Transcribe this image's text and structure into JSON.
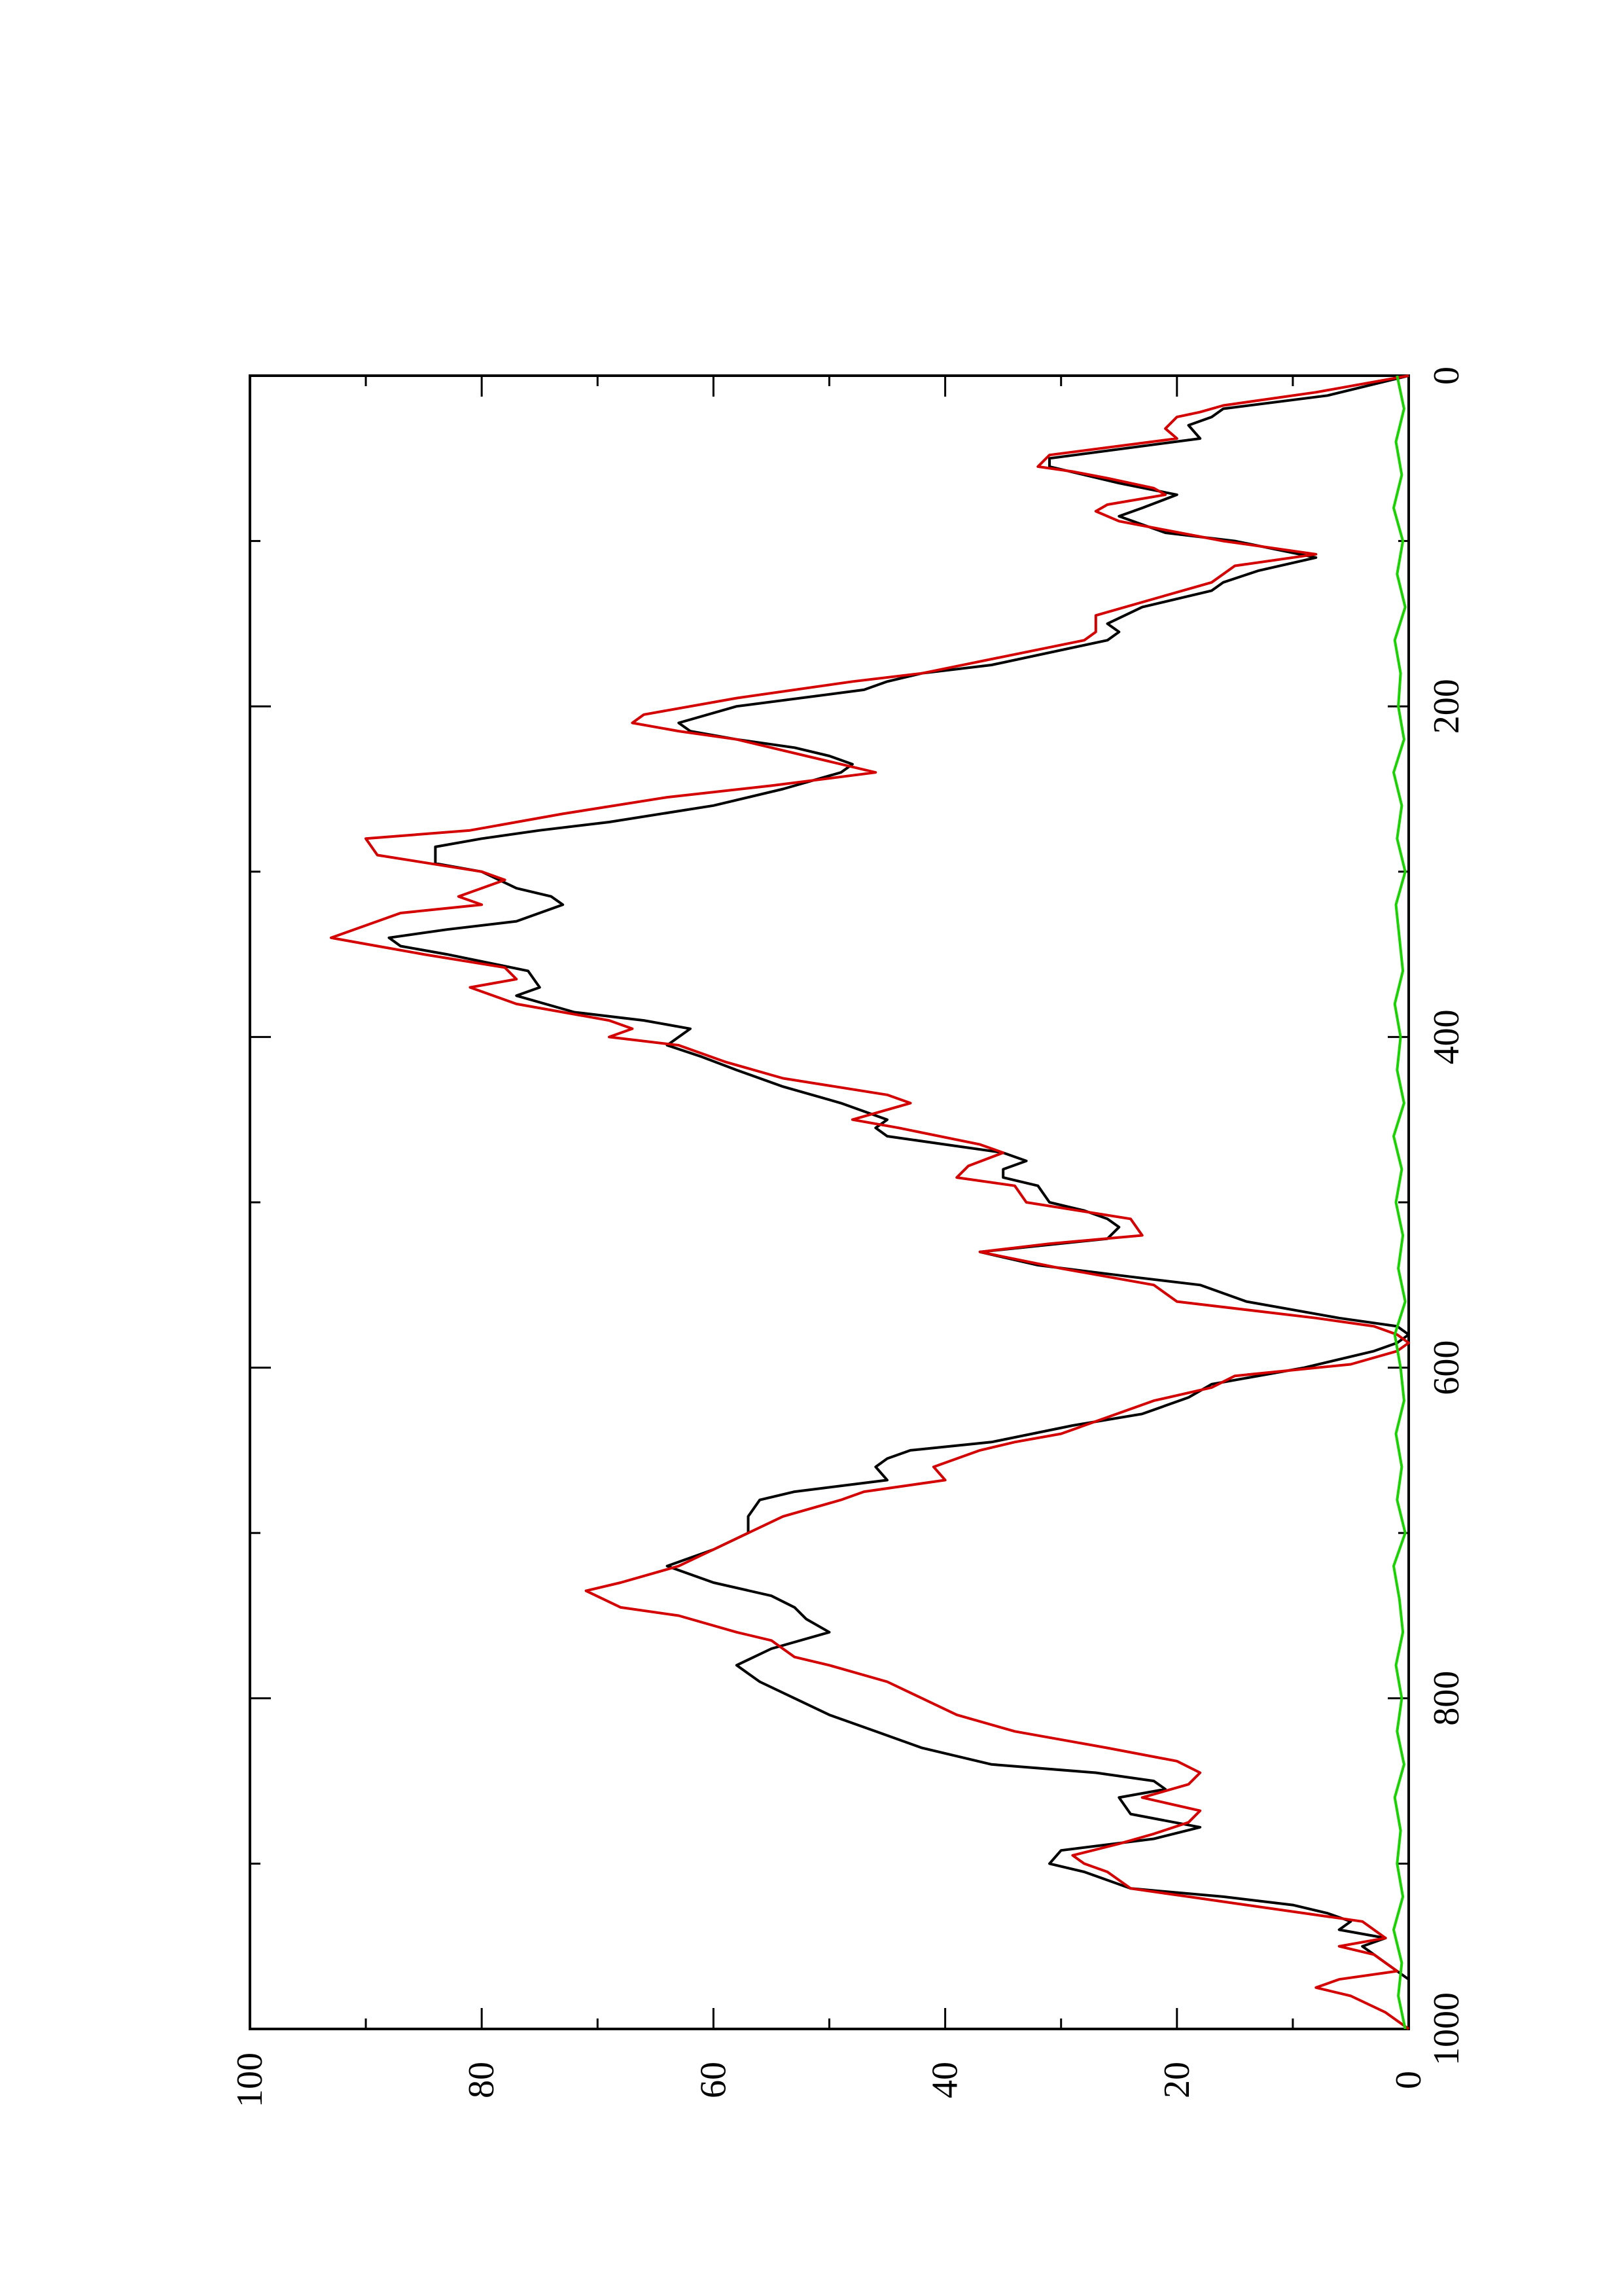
{
  "chart_data": {
    "type": "line",
    "title": "",
    "xlabel": "",
    "ylabel": "",
    "xlim": [
      0,
      1000
    ],
    "ylim": [
      0,
      100
    ],
    "x_ticks": [
      0,
      200,
      400,
      600,
      800,
      1000
    ],
    "y_ticks": [
      0,
      20,
      40,
      60,
      80,
      100
    ],
    "grid": false,
    "orientation": "page rotated 90 degrees counter-clockwise",
    "series": [
      {
        "color": "#000000",
        "points": [
          [
            0,
            0
          ],
          [
            12,
            7
          ],
          [
            20,
            16
          ],
          [
            25,
            17
          ],
          [
            30,
            19
          ],
          [
            38,
            18
          ],
          [
            50,
            31
          ],
          [
            55,
            31
          ],
          [
            65,
            25
          ],
          [
            72,
            20
          ],
          [
            80,
            23
          ],
          [
            85,
            25
          ],
          [
            95,
            21
          ],
          [
            100,
            15
          ],
          [
            110,
            8
          ],
          [
            118,
            13
          ],
          [
            125,
            16
          ],
          [
            130,
            17
          ],
          [
            140,
            23
          ],
          [
            150,
            26
          ],
          [
            155,
            25
          ],
          [
            160,
            26
          ],
          [
            175,
            36
          ],
          [
            180,
            42
          ],
          [
            185,
            45
          ],
          [
            190,
            47
          ],
          [
            200,
            58
          ],
          [
            210,
            63
          ],
          [
            215,
            62
          ],
          [
            220,
            58
          ],
          [
            225,
            53
          ],
          [
            230,
            50
          ],
          [
            235,
            48
          ],
          [
            240,
            49
          ],
          [
            250,
            54
          ],
          [
            260,
            60
          ],
          [
            270,
            69
          ],
          [
            275,
            75
          ],
          [
            280,
            80
          ],
          [
            285,
            84
          ],
          [
            295,
            84
          ],
          [
            300,
            80
          ],
          [
            310,
            77
          ],
          [
            315,
            74
          ],
          [
            320,
            73
          ],
          [
            330,
            77
          ],
          [
            335,
            83
          ],
          [
            340,
            88
          ],
          [
            345,
            87
          ],
          [
            350,
            83
          ],
          [
            360,
            76
          ],
          [
            370,
            75
          ],
          [
            375,
            77
          ],
          [
            385,
            72
          ],
          [
            390,
            66
          ],
          [
            395,
            62
          ],
          [
            400,
            63
          ],
          [
            405,
            64
          ],
          [
            412,
            61
          ],
          [
            420,
            58
          ],
          [
            430,
            54
          ],
          [
            440,
            49
          ],
          [
            450,
            45
          ],
          [
            455,
            46
          ],
          [
            460,
            45
          ],
          [
            465,
            40
          ],
          [
            470,
            35
          ],
          [
            475,
            33
          ],
          [
            480,
            35
          ],
          [
            485,
            35
          ],
          [
            490,
            32
          ],
          [
            500,
            31
          ],
          [
            505,
            28
          ],
          [
            510,
            26
          ],
          [
            515,
            25
          ],
          [
            522,
            26
          ],
          [
            530,
            37
          ],
          [
            538,
            32
          ],
          [
            545,
            24
          ],
          [
            550,
            18
          ],
          [
            560,
            14
          ],
          [
            570,
            6
          ],
          [
            575,
            1
          ],
          [
            580,
            0
          ],
          [
            585,
            1
          ],
          [
            590,
            3
          ],
          [
            600,
            9
          ],
          [
            610,
            17
          ],
          [
            618,
            19
          ],
          [
            628,
            23
          ],
          [
            635,
            29
          ],
          [
            645,
            36
          ],
          [
            650,
            43
          ],
          [
            655,
            45
          ],
          [
            660,
            46
          ],
          [
            668,
            45
          ],
          [
            675,
            53
          ],
          [
            680,
            56
          ],
          [
            690,
            57
          ],
          [
            700,
            57
          ],
          [
            710,
            60
          ],
          [
            720,
            64
          ],
          [
            730,
            60
          ],
          [
            738,
            55
          ],
          [
            745,
            53
          ],
          [
            752,
            52
          ],
          [
            760,
            50
          ],
          [
            770,
            55
          ],
          [
            780,
            58
          ],
          [
            790,
            56
          ],
          [
            800,
            53
          ],
          [
            810,
            50
          ],
          [
            820,
            46
          ],
          [
            830,
            42
          ],
          [
            840,
            36
          ],
          [
            845,
            27
          ],
          [
            850,
            22
          ],
          [
            855,
            21
          ],
          [
            860,
            25
          ],
          [
            870,
            24
          ],
          [
            878,
            18
          ],
          [
            885,
            22
          ],
          [
            892,
            30
          ],
          [
            900,
            31
          ],
          [
            905,
            28
          ],
          [
            915,
            24
          ],
          [
            920,
            16
          ],
          [
            925,
            10
          ],
          [
            930,
            7
          ],
          [
            935,
            5
          ],
          [
            940,
            6
          ],
          [
            945,
            2
          ],
          [
            950,
            4
          ],
          [
            955,
            3
          ],
          [
            960,
            2
          ],
          [
            965,
            1
          ],
          [
            970,
            0
          ],
          [
            980,
            0
          ],
          [
            990,
            0
          ],
          [
            1000,
            0
          ]
        ]
      },
      {
        "color": "#d40000",
        "points": [
          [
            0,
            0
          ],
          [
            10,
            8
          ],
          [
            18,
            16
          ],
          [
            22,
            18
          ],
          [
            25,
            20
          ],
          [
            32,
            21
          ],
          [
            38,
            20
          ],
          [
            48,
            31
          ],
          [
            55,
            32
          ],
          [
            58,
            29
          ],
          [
            62,
            26
          ],
          [
            68,
            22
          ],
          [
            72,
            21
          ],
          [
            78,
            26
          ],
          [
            82,
            27
          ],
          [
            88,
            25
          ],
          [
            92,
            22
          ],
          [
            100,
            16
          ],
          [
            108,
            8
          ],
          [
            115,
            15
          ],
          [
            125,
            17
          ],
          [
            135,
            22
          ],
          [
            145,
            27
          ],
          [
            155,
            27
          ],
          [
            160,
            28
          ],
          [
            170,
            35
          ],
          [
            180,
            42
          ],
          [
            185,
            48
          ],
          [
            195,
            58
          ],
          [
            205,
            66
          ],
          [
            210,
            67
          ],
          [
            215,
            63
          ],
          [
            220,
            58
          ],
          [
            230,
            52
          ],
          [
            235,
            49
          ],
          [
            240,
            46
          ],
          [
            248,
            55
          ],
          [
            255,
            64
          ],
          [
            265,
            73
          ],
          [
            275,
            81
          ],
          [
            280,
            90
          ],
          [
            290,
            89
          ],
          [
            300,
            80
          ],
          [
            305,
            78
          ],
          [
            315,
            82
          ],
          [
            320,
            80
          ],
          [
            325,
            87
          ],
          [
            330,
            89
          ],
          [
            340,
            93
          ],
          [
            345,
            89
          ],
          [
            350,
            85
          ],
          [
            358,
            78
          ],
          [
            365,
            77
          ],
          [
            370,
            81
          ],
          [
            380,
            77
          ],
          [
            390,
            69
          ],
          [
            395,
            67
          ],
          [
            400,
            69
          ],
          [
            405,
            63
          ],
          [
            415,
            59
          ],
          [
            425,
            54
          ],
          [
            435,
            45
          ],
          [
            440,
            43
          ],
          [
            450,
            48
          ],
          [
            455,
            44
          ],
          [
            465,
            37
          ],
          [
            470,
            35
          ],
          [
            478,
            38
          ],
          [
            485,
            39
          ],
          [
            490,
            34
          ],
          [
            500,
            33
          ],
          [
            510,
            24
          ],
          [
            520,
            23
          ],
          [
            525,
            31
          ],
          [
            530,
            37
          ],
          [
            540,
            30
          ],
          [
            550,
            22
          ],
          [
            560,
            20
          ],
          [
            570,
            8
          ],
          [
            575,
            3
          ],
          [
            580,
            1
          ],
          [
            585,
            0
          ],
          [
            590,
            1
          ],
          [
            598,
            5
          ],
          [
            605,
            15
          ],
          [
            612,
            17
          ],
          [
            620,
            22
          ],
          [
            630,
            26
          ],
          [
            640,
            30
          ],
          [
            645,
            34
          ],
          [
            650,
            37
          ],
          [
            660,
            41
          ],
          [
            668,
            40
          ],
          [
            675,
            47
          ],
          [
            680,
            49
          ],
          [
            690,
            54
          ],
          [
            700,
            57
          ],
          [
            710,
            60
          ],
          [
            720,
            63
          ],
          [
            730,
            68
          ],
          [
            735,
            71
          ],
          [
            745,
            68
          ],
          [
            750,
            63
          ],
          [
            760,
            58
          ],
          [
            765,
            55
          ],
          [
            775,
            53
          ],
          [
            780,
            50
          ],
          [
            790,
            45
          ],
          [
            800,
            42
          ],
          [
            810,
            39
          ],
          [
            820,
            34
          ],
          [
            830,
            26
          ],
          [
            838,
            20
          ],
          [
            845,
            18
          ],
          [
            852,
            19
          ],
          [
            860,
            23
          ],
          [
            868,
            18
          ],
          [
            875,
            19
          ],
          [
            882,
            22
          ],
          [
            888,
            25
          ],
          [
            895,
            29
          ],
          [
            900,
            28
          ],
          [
            905,
            26
          ],
          [
            915,
            24
          ],
          [
            920,
            19
          ],
          [
            925,
            14
          ],
          [
            935,
            4
          ],
          [
            945,
            2
          ],
          [
            950,
            6
          ],
          [
            955,
            3
          ],
          [
            960,
            2
          ],
          [
            965,
            1
          ],
          [
            970,
            6
          ],
          [
            975,
            8
          ],
          [
            980,
            5
          ],
          [
            990,
            2
          ],
          [
            1000,
            0
          ]
        ]
      },
      {
        "color": "#19d300",
        "points": [
          [
            0,
            1.0
          ],
          [
            20,
            0.4
          ],
          [
            40,
            1.1
          ],
          [
            60,
            0.6
          ],
          [
            80,
            1.3
          ],
          [
            100,
            0.5
          ],
          [
            120,
            1.0
          ],
          [
            140,
            0.3
          ],
          [
            160,
            1.2
          ],
          [
            180,
            0.7
          ],
          [
            200,
            0.9
          ],
          [
            220,
            0.4
          ],
          [
            240,
            1.3
          ],
          [
            260,
            0.6
          ],
          [
            280,
            1.0
          ],
          [
            300,
            0.3
          ],
          [
            320,
            1.1
          ],
          [
            340,
            0.8
          ],
          [
            360,
            0.5
          ],
          [
            380,
            1.2
          ],
          [
            400,
            0.7
          ],
          [
            420,
            1.0
          ],
          [
            440,
            0.4
          ],
          [
            460,
            1.3
          ],
          [
            480,
            0.6
          ],
          [
            500,
            1.1
          ],
          [
            520,
            0.5
          ],
          [
            540,
            0.9
          ],
          [
            560,
            0.3
          ],
          [
            580,
            1.2
          ],
          [
            600,
            0.7
          ],
          [
            620,
            0.4
          ],
          [
            640,
            1.1
          ],
          [
            660,
            0.6
          ],
          [
            680,
            1.0
          ],
          [
            700,
            0.3
          ],
          [
            720,
            1.3
          ],
          [
            740,
            0.8
          ],
          [
            760,
            0.5
          ],
          [
            780,
            1.1
          ],
          [
            800,
            0.6
          ],
          [
            820,
            1.0
          ],
          [
            840,
            0.4
          ],
          [
            860,
            1.2
          ],
          [
            880,
            0.7
          ],
          [
            900,
            1.0
          ],
          [
            920,
            0.5
          ],
          [
            940,
            1.3
          ],
          [
            960,
            0.6
          ],
          [
            980,
            0.9
          ],
          [
            1000,
            0.3
          ]
        ]
      }
    ]
  }
}
